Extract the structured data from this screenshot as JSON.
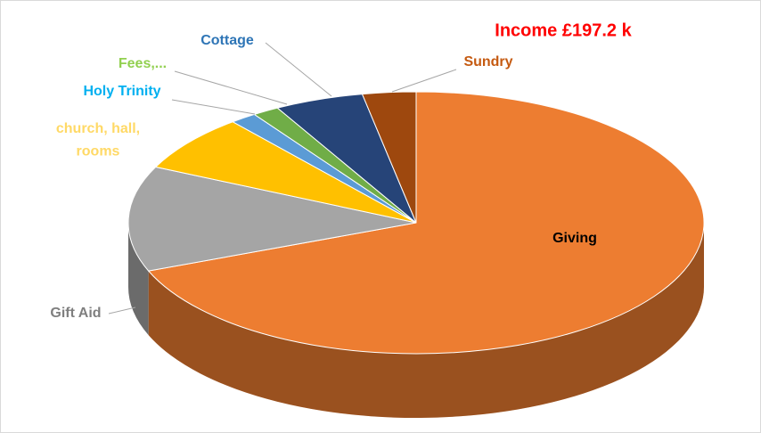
{
  "chart_data": {
    "type": "pie",
    "title": "Income £197.2 k",
    "categories": [
      "Giving",
      "Gift Aid",
      "church, hall, rooms",
      "Holy Trinity",
      "Fees,...",
      "Cottage",
      "Sundry"
    ],
    "values": [
      69,
      13,
      7,
      1.5,
      1.5,
      5,
      3
    ],
    "colors": [
      "#ED7D31",
      "#A5A5A5",
      "#FFC000",
      "#5B9BD5",
      "#70AD47",
      "#264478",
      "#9E480E"
    ],
    "label_colors": [
      "#000000",
      "#7F7F7F",
      "#FFD966",
      "#00B0F0",
      "#92D050",
      "#2E75B6",
      "#C55A11"
    ]
  }
}
